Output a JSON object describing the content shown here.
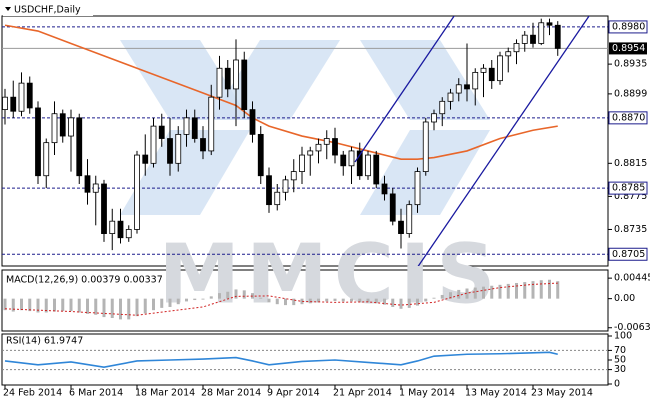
{
  "chart_data": [
    {
      "type": "candlestick",
      "title": "USDCHF,Daily",
      "watermark": "MMCIS",
      "up_color": "#ffffff",
      "down_color": "#000000",
      "level_color": "#1c1c8c",
      "open": [
        0.888,
        0.8895,
        0.8878,
        0.8912,
        0.8882,
        0.88,
        0.884,
        0.8875,
        0.8848,
        0.887,
        0.88,
        0.878,
        0.879,
        0.873,
        0.8745,
        0.8725,
        0.8735,
        0.8825,
        0.8815,
        0.886,
        0.8845,
        0.8815,
        0.885,
        0.887,
        0.8845,
        0.883,
        0.8895,
        0.893,
        0.8905,
        0.894,
        0.888,
        0.885,
        0.88,
        0.8765,
        0.878,
        0.8795,
        0.8805,
        0.8825,
        0.883,
        0.8838,
        0.8845,
        0.8825,
        0.8812,
        0.883,
        0.88,
        0.8825,
        0.879,
        0.8778,
        0.8745,
        0.873,
        0.8765,
        0.8805,
        0.8865,
        0.8875,
        0.889,
        0.89,
        0.891,
        0.8905,
        0.8925,
        0.893,
        0.8915,
        0.8945,
        0.895,
        0.896,
        0.897,
        0.896,
        0.8985,
        0.8982
      ],
      "high": [
        0.8905,
        0.8915,
        0.8925,
        0.892,
        0.889,
        0.8845,
        0.889,
        0.888,
        0.888,
        0.8875,
        0.882,
        0.88,
        0.8795,
        0.876,
        0.876,
        0.874,
        0.883,
        0.885,
        0.887,
        0.8875,
        0.887,
        0.886,
        0.888,
        0.888,
        0.886,
        0.891,
        0.8945,
        0.894,
        0.8965,
        0.895,
        0.889,
        0.886,
        0.881,
        0.879,
        0.88,
        0.882,
        0.8835,
        0.8835,
        0.8845,
        0.8855,
        0.8858,
        0.883,
        0.8835,
        0.884,
        0.883,
        0.883,
        0.88,
        0.8785,
        0.876,
        0.877,
        0.881,
        0.887,
        0.888,
        0.8895,
        0.8905,
        0.8918,
        0.896,
        0.893,
        0.8935,
        0.894,
        0.895,
        0.8955,
        0.8965,
        0.8975,
        0.8985,
        0.899,
        0.899,
        0.8987
      ],
      "low": [
        0.8862,
        0.887,
        0.8872,
        0.8875,
        0.879,
        0.8785,
        0.8825,
        0.884,
        0.8805,
        0.879,
        0.8765,
        0.874,
        0.872,
        0.871,
        0.8718,
        0.872,
        0.873,
        0.88,
        0.881,
        0.8835,
        0.88,
        0.8805,
        0.8835,
        0.884,
        0.882,
        0.8825,
        0.888,
        0.8895,
        0.886,
        0.887,
        0.884,
        0.879,
        0.8755,
        0.8758,
        0.877,
        0.878,
        0.879,
        0.88,
        0.8815,
        0.882,
        0.8815,
        0.88,
        0.879,
        0.8795,
        0.8795,
        0.8785,
        0.877,
        0.874,
        0.8712,
        0.8725,
        0.8755,
        0.88,
        0.8855,
        0.886,
        0.888,
        0.889,
        0.889,
        0.8885,
        0.8895,
        0.8905,
        0.891,
        0.8925,
        0.8935,
        0.895,
        0.8955,
        0.8958,
        0.897,
        0.8945
      ],
      "close": [
        0.8895,
        0.8878,
        0.8912,
        0.8882,
        0.88,
        0.884,
        0.8875,
        0.8848,
        0.887,
        0.88,
        0.878,
        0.879,
        0.873,
        0.8745,
        0.8725,
        0.8735,
        0.8825,
        0.8815,
        0.886,
        0.8845,
        0.8815,
        0.885,
        0.887,
        0.8845,
        0.883,
        0.8895,
        0.893,
        0.8905,
        0.894,
        0.888,
        0.885,
        0.88,
        0.8765,
        0.878,
        0.8795,
        0.8805,
        0.8825,
        0.883,
        0.8838,
        0.8845,
        0.8825,
        0.8812,
        0.883,
        0.88,
        0.8825,
        0.879,
        0.8778,
        0.8745,
        0.873,
        0.8765,
        0.8805,
        0.8865,
        0.8875,
        0.889,
        0.89,
        0.891,
        0.8905,
        0.8925,
        0.893,
        0.8915,
        0.8945,
        0.895,
        0.896,
        0.897,
        0.896,
        0.8985,
        0.8982,
        0.8954
      ],
      "ma": {
        "color": "#e8662a",
        "x": [
          0,
          4,
          8,
          12,
          16,
          20,
          24,
          28,
          30,
          32,
          36,
          40,
          44,
          48,
          50,
          52,
          56,
          60,
          64,
          67
        ],
        "values": [
          0.8982,
          0.8975,
          0.896,
          0.8945,
          0.893,
          0.8915,
          0.89,
          0.8885,
          0.887,
          0.886,
          0.8848,
          0.884,
          0.883,
          0.882,
          0.882,
          0.8822,
          0.883,
          0.8845,
          0.8855,
          0.886
        ]
      },
      "ylim": [
        0.8692,
        0.8992
      ],
      "yticks": [
        0.8935,
        0.8899,
        0.8815,
        {
          "value": 0.8775,
          "label": "0.8775"
        },
        0.8735
      ],
      "levels": [
        {
          "value": 0.898,
          "label": "0.8980"
        },
        {
          "value": 0.887,
          "label": "0.8870"
        },
        {
          "value": 0.8785,
          "label": "0.8785"
        },
        {
          "value": 0.8705,
          "label": "0.8705"
        }
      ],
      "current": 0.8954,
      "xticks": [
        {
          "value": 0,
          "label": "24 Feb 2014"
        },
        {
          "value": 8,
          "label": "6 Mar 2014"
        },
        {
          "value": 16,
          "label": "18 Mar 2014"
        },
        {
          "value": 24,
          "label": "28 Mar 2014"
        },
        {
          "value": 32,
          "label": "9 Apr 2014"
        },
        {
          "value": 40,
          "label": "21 Apr 2014"
        },
        {
          "value": 48,
          "label": "1 May 2014"
        },
        {
          "value": 56,
          "label": "13 May 2014"
        },
        {
          "value": 64,
          "label": "23 May 2014"
        }
      ]
    },
    {
      "type": "macd",
      "title": "MACD(12,26,9) 0.00379 0.00337",
      "color": "#b4b4b4",
      "values": [
        -0.0025,
        -0.0028,
        -0.0025,
        -0.0027,
        -0.003,
        -0.003,
        -0.0028,
        -0.0027,
        -0.0027,
        -0.003,
        -0.0033,
        -0.0035,
        -0.004,
        -0.0042,
        -0.0045,
        -0.0045,
        -0.0038,
        -0.0032,
        -0.0025,
        -0.002,
        -0.0018,
        -0.0012,
        -0.0006,
        -0.0003,
        -0.0002,
        0.0005,
        0.0012,
        0.0015,
        0.002,
        0.0018,
        0.0012,
        0.0002,
        -0.0008,
        -0.0012,
        -0.0014,
        -0.0014,
        -0.0012,
        -0.001,
        -0.0008,
        -0.0006,
        -0.0005,
        -0.0006,
        -0.0006,
        -0.0008,
        -0.0008,
        -0.001,
        -0.0013,
        -0.0018,
        -0.0022,
        -0.002,
        -0.0015,
        -0.0006,
        0.0002,
        0.0008,
        0.0014,
        0.0019,
        0.0022,
        0.0024,
        0.0026,
        0.0028,
        0.003,
        0.0032,
        0.0034,
        0.0036,
        0.0038,
        0.004,
        0.0041,
        0.00379
      ],
      "signal": {
        "color": "#d02020",
        "x": [
          0,
          8,
          16,
          24,
          28,
          32,
          36,
          40,
          44,
          48,
          52,
          56,
          60,
          64,
          67
        ],
        "values": [
          -0.0022,
          -0.0028,
          -0.0036,
          -0.0018,
          0.0005,
          0.0006,
          -0.0006,
          -0.0008,
          -0.0007,
          -0.0014,
          -0.0008,
          0.0012,
          0.0024,
          0.0031,
          0.00337
        ]
      },
      "ylim": [
        -0.0068,
        0.006
      ],
      "yticks": [
        0.00445,
        {
          "value": 0,
          "label": "0.00"
        },
        -0.00631
      ]
    },
    {
      "type": "line",
      "title": "RSI(14) 61.9747",
      "color": "#2f86d8",
      "x": [
        0,
        4,
        8,
        12,
        16,
        20,
        24,
        28,
        30,
        32,
        36,
        40,
        44,
        48,
        50,
        52,
        56,
        60,
        64,
        66,
        67
      ],
      "values": [
        48,
        40,
        46,
        35,
        48,
        50,
        52,
        55,
        48,
        40,
        47,
        50,
        45,
        40,
        48,
        58,
        62,
        63,
        65,
        66,
        61.9747
      ],
      "ylim": [
        0,
        100
      ],
      "yticks": [
        100,
        70,
        50,
        30,
        0
      ],
      "levels": [
        70,
        30
      ]
    }
  ]
}
